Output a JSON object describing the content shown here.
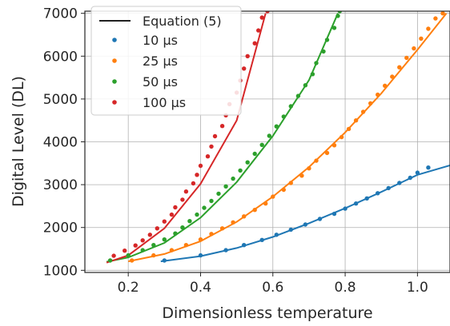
{
  "chart_data": {
    "type": "scatter",
    "title": "",
    "xlabel": "Dimensionless temperature",
    "ylabel": "Digital Level (DL)",
    "xlim": [
      0.08,
      1.09
    ],
    "ylim": [
      950,
      7050
    ],
    "x_ticks": [
      0.2,
      0.4,
      0.6,
      0.8,
      1.0
    ],
    "x_tick_labels": [
      "0.2",
      "0.4",
      "0.6",
      "0.8",
      "1.0"
    ],
    "y_ticks": [
      1000,
      2000,
      3000,
      4000,
      5000,
      6000,
      7000
    ],
    "y_tick_labels": [
      "1000",
      "2000",
      "3000",
      "4000",
      "5000",
      "6000",
      "7000"
    ],
    "grid": true,
    "legend_position": "top-left",
    "fit_line_label": "Equation (5)",
    "fit_line_color": "#000000",
    "series": [
      {
        "name": "10 μs",
        "color": "#1f77b4",
        "points": [
          [
            0.3,
            1230
          ],
          [
            0.4,
            1350
          ],
          [
            0.47,
            1470
          ],
          [
            0.52,
            1590
          ],
          [
            0.57,
            1710
          ],
          [
            0.61,
            1830
          ],
          [
            0.65,
            1950
          ],
          [
            0.69,
            2070
          ],
          [
            0.73,
            2200
          ],
          [
            0.77,
            2320
          ],
          [
            0.8,
            2440
          ],
          [
            0.83,
            2560
          ],
          [
            0.86,
            2680
          ],
          [
            0.89,
            2800
          ],
          [
            0.92,
            2920
          ],
          [
            0.95,
            3040
          ],
          [
            0.98,
            3160
          ],
          [
            1.0,
            3280
          ],
          [
            1.03,
            3400
          ]
        ],
        "fit": [
          [
            0.29,
            1210
          ],
          [
            0.4,
            1330
          ],
          [
            0.5,
            1520
          ],
          [
            0.6,
            1780
          ],
          [
            0.7,
            2100
          ],
          [
            0.8,
            2450
          ],
          [
            0.9,
            2830
          ],
          [
            1.0,
            3230
          ],
          [
            1.09,
            3450
          ]
        ]
      },
      {
        "name": "25 μs",
        "color": "#ff7f0e",
        "points": [
          [
            0.21,
            1230
          ],
          [
            0.27,
            1350
          ],
          [
            0.32,
            1470
          ],
          [
            0.36,
            1590
          ],
          [
            0.4,
            1720
          ],
          [
            0.43,
            1850
          ],
          [
            0.46,
            1980
          ],
          [
            0.49,
            2120
          ],
          [
            0.52,
            2260
          ],
          [
            0.55,
            2410
          ],
          [
            0.58,
            2560
          ],
          [
            0.6,
            2720
          ],
          [
            0.63,
            2880
          ],
          [
            0.65,
            3040
          ],
          [
            0.68,
            3210
          ],
          [
            0.7,
            3380
          ],
          [
            0.72,
            3560
          ],
          [
            0.75,
            3740
          ],
          [
            0.77,
            3920
          ],
          [
            0.79,
            4110
          ],
          [
            0.81,
            4300
          ],
          [
            0.83,
            4500
          ],
          [
            0.85,
            4700
          ],
          [
            0.87,
            4900
          ],
          [
            0.89,
            5100
          ],
          [
            0.91,
            5310
          ],
          [
            0.93,
            5520
          ],
          [
            0.95,
            5740
          ],
          [
            0.97,
            5960
          ],
          [
            0.99,
            6180
          ],
          [
            1.01,
            6410
          ],
          [
            1.03,
            6640
          ],
          [
            1.05,
            6880
          ],
          [
            1.07,
            7000
          ]
        ],
        "fit": [
          [
            0.2,
            1210
          ],
          [
            0.3,
            1380
          ],
          [
            0.4,
            1680
          ],
          [
            0.5,
            2130
          ],
          [
            0.6,
            2720
          ],
          [
            0.7,
            3410
          ],
          [
            0.8,
            4220
          ],
          [
            0.9,
            5130
          ],
          [
            1.0,
            6150
          ],
          [
            1.08,
            7000
          ]
        ]
      },
      {
        "name": "50 μs",
        "color": "#2ca02c",
        "points": [
          [
            0.15,
            1230
          ],
          [
            0.2,
            1350
          ],
          [
            0.24,
            1470
          ],
          [
            0.27,
            1590
          ],
          [
            0.3,
            1720
          ],
          [
            0.33,
            1860
          ],
          [
            0.35,
            2000
          ],
          [
            0.37,
            2150
          ],
          [
            0.39,
            2300
          ],
          [
            0.41,
            2460
          ],
          [
            0.43,
            2620
          ],
          [
            0.45,
            2790
          ],
          [
            0.47,
            2960
          ],
          [
            0.49,
            3140
          ],
          [
            0.51,
            3330
          ],
          [
            0.53,
            3520
          ],
          [
            0.55,
            3720
          ],
          [
            0.57,
            3930
          ],
          [
            0.59,
            4140
          ],
          [
            0.61,
            4360
          ],
          [
            0.63,
            4590
          ],
          [
            0.65,
            4830
          ],
          [
            0.67,
            5070
          ],
          [
            0.69,
            5320
          ],
          [
            0.71,
            5580
          ],
          [
            0.72,
            5840
          ],
          [
            0.74,
            6110
          ],
          [
            0.75,
            6380
          ],
          [
            0.77,
            6660
          ],
          [
            0.78,
            6940
          ],
          [
            0.785,
            7050
          ]
        ],
        "fit": [
          [
            0.14,
            1200
          ],
          [
            0.2,
            1300
          ],
          [
            0.3,
            1640
          ],
          [
            0.4,
            2230
          ],
          [
            0.5,
            3060
          ],
          [
            0.6,
            4140
          ],
          [
            0.7,
            5440
          ],
          [
            0.78,
            7000
          ]
        ]
      },
      {
        "name": "100 μs",
        "color": "#d62728",
        "points": [
          [
            0.16,
            1340
          ],
          [
            0.19,
            1460
          ],
          [
            0.22,
            1580
          ],
          [
            0.24,
            1700
          ],
          [
            0.26,
            1830
          ],
          [
            0.28,
            1980
          ],
          [
            0.3,
            2140
          ],
          [
            0.32,
            2300
          ],
          [
            0.33,
            2470
          ],
          [
            0.35,
            2650
          ],
          [
            0.36,
            2840
          ],
          [
            0.38,
            3030
          ],
          [
            0.39,
            3230
          ],
          [
            0.4,
            3440
          ],
          [
            0.42,
            3660
          ],
          [
            0.43,
            3890
          ],
          [
            0.44,
            4130
          ],
          [
            0.46,
            4370
          ],
          [
            0.47,
            4620
          ],
          [
            0.48,
            4880
          ],
          [
            0.5,
            5150
          ],
          [
            0.51,
            5430
          ],
          [
            0.52,
            5710
          ],
          [
            0.53,
            6000
          ],
          [
            0.55,
            6300
          ],
          [
            0.56,
            6600
          ],
          [
            0.57,
            6900
          ],
          [
            0.585,
            7050
          ]
        ],
        "fit": [
          [
            0.14,
            1180
          ],
          [
            0.2,
            1350
          ],
          [
            0.3,
            1980
          ],
          [
            0.4,
            3020
          ],
          [
            0.5,
            4500
          ],
          [
            0.58,
            7000
          ]
        ]
      }
    ]
  }
}
